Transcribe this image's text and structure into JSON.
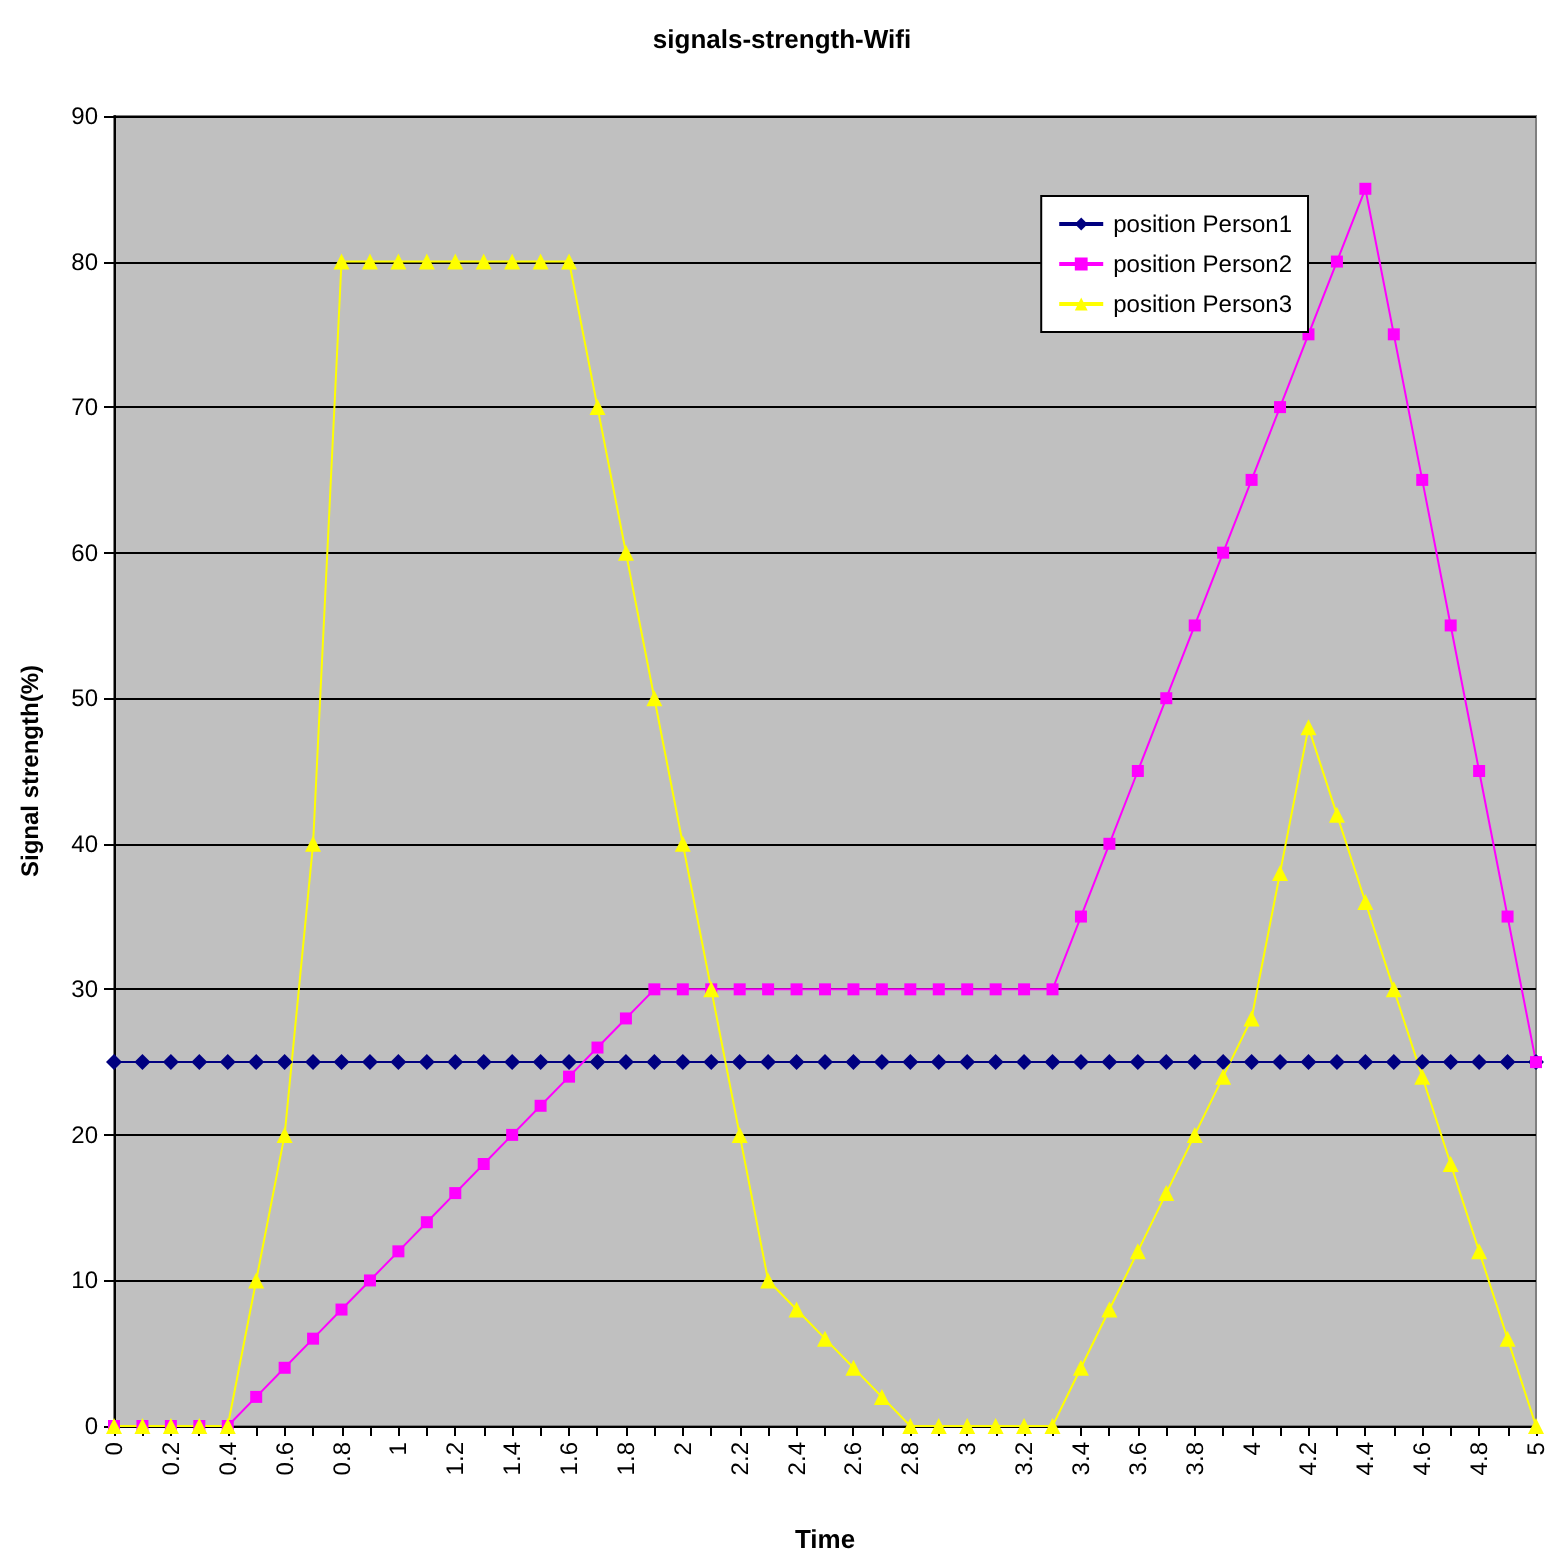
{
  "chart_data": {
    "type": "line",
    "title": "signals-strength-Wifi",
    "xlabel": "Time",
    "ylabel": "Signal strength(%)",
    "categories": [
      "0",
      null,
      "0.2",
      null,
      "0.4",
      null,
      "0.6",
      null,
      "0.8",
      null,
      "1",
      null,
      "1.2",
      null,
      "1.4",
      null,
      "1.6",
      null,
      "1.8",
      null,
      "2",
      null,
      "2.2",
      null,
      "2.4",
      null,
      "2.6",
      null,
      "2.8",
      null,
      "3",
      null,
      "3.2",
      null,
      "3.4",
      null,
      "3.6",
      null,
      "3.8",
      null,
      "4",
      null,
      "4.2",
      null,
      "4.4",
      null,
      "4.6",
      null,
      "4.8",
      null,
      "5"
    ],
    "series": [
      {
        "name": "position Person1",
        "color": "#000080",
        "marker": "diamond",
        "values": [
          25,
          25,
          25,
          25,
          25,
          25,
          25,
          25,
          25,
          25,
          25,
          25,
          25,
          25,
          25,
          25,
          25,
          25,
          25,
          25,
          25,
          25,
          25,
          25,
          25,
          25,
          25,
          25,
          25,
          25,
          25,
          25,
          25,
          25,
          25,
          25,
          25,
          25,
          25,
          25,
          25,
          25,
          25,
          25,
          25,
          25,
          25,
          25,
          25,
          25,
          25
        ]
      },
      {
        "name": "position Person2",
        "color": "#ff00ff",
        "marker": "square",
        "values": [
          0,
          0,
          0,
          0,
          0,
          2,
          4,
          6,
          8,
          10,
          12,
          14,
          16,
          18,
          20,
          22,
          24,
          26,
          28,
          30,
          30,
          30,
          30,
          30,
          30,
          30,
          30,
          30,
          30,
          30,
          30,
          30,
          30,
          30,
          35,
          40,
          45,
          50,
          55,
          60,
          65,
          70,
          75,
          80,
          85,
          75,
          65,
          55,
          45,
          35,
          25
        ]
      },
      {
        "name": "position Person3",
        "color": "#ffff00",
        "marker": "triangle",
        "values": [
          0,
          0,
          0,
          0,
          0,
          10,
          20,
          40,
          80,
          80,
          80,
          80,
          80,
          80,
          80,
          80,
          80,
          70,
          60,
          50,
          40,
          30,
          20,
          10,
          8,
          6,
          4,
          2,
          0,
          0,
          0,
          0,
          0,
          0,
          4,
          8,
          12,
          16,
          20,
          24,
          28,
          38,
          48,
          42,
          36,
          30,
          24,
          18,
          12,
          6,
          0
        ]
      }
    ],
    "ylim": [
      0,
      90
    ],
    "yticks": [
      0,
      10,
      20,
      30,
      40,
      50,
      60,
      70,
      80,
      90
    ],
    "grid": "y",
    "legend": "top right"
  }
}
